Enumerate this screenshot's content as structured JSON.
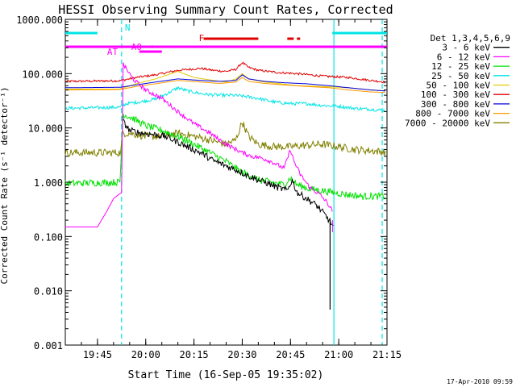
{
  "chart_data": {
    "type": "line",
    "title": "HESSI Observing Summary Count Rates, Corrected",
    "xlabel": "Start Time (16-Sep-05 19:35:02)",
    "ylabel": "Corrected Count Rate (s⁻¹ detector⁻¹)",
    "yscale": "log",
    "ylim": [
      0.001,
      1000
    ],
    "xlim_min": [
      0,
      100
    ],
    "x_ticks": [
      {
        "t": 10,
        "label": "19:45"
      },
      {
        "t": 25,
        "label": "20:00"
      },
      {
        "t": 40,
        "label": "20:15"
      },
      {
        "t": 55,
        "label": "20:30"
      },
      {
        "t": 70,
        "label": "20:45"
      },
      {
        "t": 85,
        "label": "21:00"
      },
      {
        "t": 100,
        "label": "21:15"
      }
    ],
    "y_ticks": [
      {
        "v": 0.001,
        "label": "0.001"
      },
      {
        "v": 0.01,
        "label": "0.010"
      },
      {
        "v": 0.1,
        "label": "0.100"
      },
      {
        "v": 1,
        "label": "1.000"
      },
      {
        "v": 10,
        "label": "10.000"
      },
      {
        "v": 100,
        "label": "100.000"
      },
      {
        "v": 1000,
        "label": "1000.000"
      }
    ],
    "legend_title": "Det 1,3,4,5,6,9",
    "flags": {
      "N": {
        "label": "N",
        "color": "#00e5e5",
        "segments": [
          [
            0,
            10
          ],
          [
            83,
            100
          ]
        ]
      },
      "AT": {
        "label": "AT",
        "color": "#ff00ff",
        "segments": [
          [
            0,
            100
          ]
        ]
      },
      "A0": {
        "label": "A0",
        "color": "#ff00ff",
        "segments": [
          [
            23,
            30
          ]
        ]
      },
      "F": {
        "label": "F",
        "color": "#e00000",
        "segments": [
          [
            43,
            60
          ],
          [
            69,
            71
          ],
          [
            72,
            73
          ]
        ]
      }
    },
    "vertical_lines": [
      {
        "t": 17.5,
        "style": "dashed"
      },
      {
        "t": 83.5,
        "style": "solid"
      },
      {
        "t": 98.5,
        "style": "dashed"
      }
    ],
    "series": [
      {
        "name": "3 - 6 keV",
        "color": "#000000",
        "points": [
          [
            18,
            13
          ],
          [
            20,
            9
          ],
          [
            24,
            8
          ],
          [
            28,
            7.5
          ],
          [
            31,
            7
          ],
          [
            35,
            5.5
          ],
          [
            38,
            4.5
          ],
          [
            42,
            3.5
          ],
          [
            46,
            2.5
          ],
          [
            50,
            2
          ],
          [
            54,
            1.6
          ],
          [
            57,
            1.3
          ],
          [
            60,
            1.1
          ],
          [
            63,
            0.95
          ],
          [
            66,
            0.8
          ],
          [
            69,
            0.7
          ],
          [
            70.5,
            1.1
          ],
          [
            72,
            0.65
          ],
          [
            75,
            0.5
          ],
          [
            78,
            0.38
          ],
          [
            80,
            0.28
          ],
          [
            82,
            0.2
          ],
          [
            83.3,
            0.15
          ]
        ]
      },
      {
        "name": "6 - 12 keV",
        "color": "#ff00ff",
        "points": [
          [
            0,
            0.15
          ],
          [
            10,
            0.15
          ],
          [
            13,
            0.3
          ],
          [
            15,
            0.5
          ],
          [
            17.5,
            0.65
          ],
          [
            18,
            150
          ],
          [
            21,
            80
          ],
          [
            25,
            50
          ],
          [
            30,
            35
          ],
          [
            35,
            20
          ],
          [
            40,
            12
          ],
          [
            45,
            8
          ],
          [
            50,
            5
          ],
          [
            55,
            3.5
          ],
          [
            58,
            3
          ],
          [
            61,
            2.8
          ],
          [
            64,
            2.4
          ],
          [
            68,
            1.8
          ],
          [
            70,
            4
          ],
          [
            71,
            2.5
          ],
          [
            73,
            1.4
          ],
          [
            76,
            0.8
          ],
          [
            79,
            0.6
          ],
          [
            81,
            0.45
          ],
          [
            83,
            0.3
          ]
        ]
      },
      {
        "name": "12 - 25 keV",
        "color": "#00e000",
        "points": [
          [
            0,
            0.95
          ],
          [
            17,
            1
          ],
          [
            18,
            18
          ],
          [
            21,
            15
          ],
          [
            25,
            11
          ],
          [
            30,
            9
          ],
          [
            35,
            7
          ],
          [
            40,
            5
          ],
          [
            45,
            3.5
          ],
          [
            50,
            2.4
          ],
          [
            55,
            1.5
          ],
          [
            58,
            1.3
          ],
          [
            60,
            1.1
          ],
          [
            64,
            1
          ],
          [
            68,
            0.9
          ],
          [
            70,
            1.2
          ],
          [
            72,
            0.9
          ],
          [
            76,
            0.75
          ],
          [
            80,
            0.7
          ],
          [
            83,
            0.65
          ],
          [
            87,
            0.6
          ],
          [
            92,
            0.55
          ],
          [
            96,
            0.55
          ],
          [
            99.5,
            0.55
          ]
        ]
      },
      {
        "name": "25 - 50 keV",
        "color": "#00e5e5",
        "points": [
          [
            0,
            23
          ],
          [
            17,
            24
          ],
          [
            19,
            28
          ],
          [
            23,
            30
          ],
          [
            28,
            34
          ],
          [
            32,
            44
          ],
          [
            35,
            55
          ],
          [
            38,
            48
          ],
          [
            43,
            42
          ],
          [
            48,
            40
          ],
          [
            52,
            40
          ],
          [
            56,
            38
          ],
          [
            60,
            35
          ],
          [
            65,
            30
          ],
          [
            70,
            28
          ],
          [
            75,
            28
          ],
          [
            80,
            26
          ],
          [
            85,
            25
          ],
          [
            90,
            23
          ],
          [
            95,
            22
          ],
          [
            99.5,
            21
          ]
        ]
      },
      {
        "name": "50 - 100 keV",
        "color": "#e6c800",
        "points": [
          [
            0,
            52
          ],
          [
            17,
            52
          ],
          [
            22,
            65
          ],
          [
            28,
            80
          ],
          [
            35,
            110
          ],
          [
            40,
            85
          ],
          [
            46,
            75
          ],
          [
            50,
            70
          ],
          [
            53,
            80
          ],
          [
            55,
            100
          ],
          [
            57,
            80
          ],
          [
            62,
            70
          ],
          [
            67,
            65
          ],
          [
            72,
            60
          ],
          [
            80,
            58
          ],
          [
            88,
            55
          ],
          [
            95,
            50
          ],
          [
            99.5,
            48
          ]
        ]
      },
      {
        "name": "100 - 300 keV",
        "color": "#e00000",
        "points": [
          [
            0,
            72
          ],
          [
            17,
            74
          ],
          [
            22,
            85
          ],
          [
            28,
            95
          ],
          [
            35,
            115
          ],
          [
            42,
            125
          ],
          [
            46,
            115
          ],
          [
            50,
            110
          ],
          [
            53,
            120
          ],
          [
            55,
            160
          ],
          [
            57,
            130
          ],
          [
            60,
            115
          ],
          [
            66,
            105
          ],
          [
            72,
            100
          ],
          [
            80,
            90
          ],
          [
            88,
            85
          ],
          [
            95,
            75
          ],
          [
            99.5,
            70
          ]
        ]
      },
      {
        "name": "300 - 800 keV",
        "color": "#0000e0",
        "points": [
          [
            0,
            55
          ],
          [
            17,
            56
          ],
          [
            22,
            62
          ],
          [
            28,
            70
          ],
          [
            35,
            80
          ],
          [
            42,
            75
          ],
          [
            48,
            72
          ],
          [
            53,
            75
          ],
          [
            55,
            95
          ],
          [
            57,
            80
          ],
          [
            62,
            72
          ],
          [
            68,
            68
          ],
          [
            75,
            65
          ],
          [
            82,
            60
          ],
          [
            88,
            55
          ],
          [
            95,
            50
          ],
          [
            99.5,
            48
          ]
        ]
      },
      {
        "name": "800 - 7000 keV",
        "color": "#ff9900",
        "points": [
          [
            0,
            50
          ],
          [
            17,
            51
          ],
          [
            22,
            58
          ],
          [
            28,
            65
          ],
          [
            35,
            75
          ],
          [
            42,
            70
          ],
          [
            48,
            66
          ],
          [
            53,
            70
          ],
          [
            55,
            85
          ],
          [
            57,
            72
          ],
          [
            62,
            66
          ],
          [
            68,
            62
          ],
          [
            75,
            58
          ],
          [
            82,
            55
          ],
          [
            88,
            50
          ],
          [
            95,
            46
          ],
          [
            99.5,
            45
          ]
        ]
      },
      {
        "name": "7000 - 20000 keV",
        "color": "#808000",
        "points": [
          [
            0,
            3.5
          ],
          [
            17.3,
            3.5
          ],
          [
            17.7,
            8
          ],
          [
            20,
            8
          ],
          [
            25,
            7
          ],
          [
            30,
            7
          ],
          [
            35,
            8
          ],
          [
            40,
            7
          ],
          [
            45,
            6
          ],
          [
            50,
            5
          ],
          [
            53,
            6
          ],
          [
            55,
            13
          ],
          [
            57,
            7
          ],
          [
            60,
            5
          ],
          [
            65,
            4.5
          ],
          [
            70,
            4.5
          ],
          [
            75,
            4.8
          ],
          [
            80,
            5
          ],
          [
            85,
            4.5
          ],
          [
            90,
            4
          ],
          [
            95,
            3.8
          ],
          [
            99.5,
            3.6
          ]
        ]
      }
    ],
    "noise": [
      {
        "series": "3 - 6 keV",
        "range": [
          18,
          83.3
        ],
        "amp": 0.12
      },
      {
        "series": "6 - 12 keV",
        "range": [
          18,
          83
        ],
        "amp": 0.08
      },
      {
        "series": "12 - 25 keV",
        "range": [
          0,
          99.5
        ],
        "amp": 0.13
      },
      {
        "series": "25 - 50 keV",
        "range": [
          0,
          99.5
        ],
        "amp": 0.06
      },
      {
        "series": "100 - 300 keV",
        "range": [
          0,
          99.5
        ],
        "amp": 0.04
      },
      {
        "series": "7000 - 20000 keV",
        "range": [
          0,
          99.5
        ],
        "amp": 0.14
      }
    ],
    "drop_spike": {
      "t": 82.3,
      "top": 0.2,
      "bottom": 0.0045
    }
  },
  "footer_stamp": "17-Apr-2010 09:59"
}
